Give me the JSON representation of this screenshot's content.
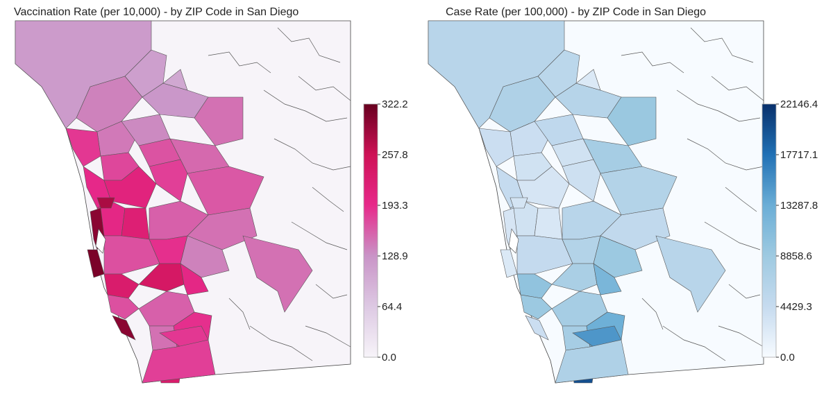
{
  "chart_data": [
    {
      "type": "choropleth",
      "title": "Vaccination Rate (per 10,000) - by ZIP Code in San Diego",
      "colorbar": {
        "min": 0.0,
        "max": 322.2,
        "ticks": [
          "0.0",
          "64.4",
          "128.9",
          "193.3",
          "257.8",
          "322.2"
        ],
        "colors": [
          "#f7f4f9",
          "#ddc9e3",
          "#c994c7",
          "#e7298a",
          "#ce1256",
          "#67001f"
        ]
      },
      "regions": [
        {
          "v": 120
        },
        {
          "v": 115
        },
        {
          "v": 140
        },
        {
          "v": 125
        },
        {
          "v": 150
        },
        {
          "v": 105
        },
        {
          "v": 145
        },
        {
          "v": 135
        },
        {
          "v": 185
        },
        {
          "v": 175
        },
        {
          "v": 168
        },
        {
          "v": 155
        },
        {
          "v": 195
        },
        {
          "v": 210
        },
        {
          "v": 180
        },
        {
          "v": 165
        },
        {
          "v": 200
        },
        {
          "v": 220
        },
        {
          "v": 300
        },
        {
          "v": 310
        },
        {
          "v": 280
        },
        {
          "v": 160
        },
        {
          "v": 150
        },
        {
          "v": 170
        },
        {
          "v": 190
        },
        {
          "v": 140
        },
        {
          "v": 150
        },
        {
          "v": 230
        },
        {
          "v": 240
        },
        {
          "v": 200
        },
        {
          "v": 170
        },
        {
          "v": 300
        },
        {
          "v": 160
        },
        {
          "v": 150
        },
        {
          "v": 190
        },
        {
          "v": 185
        },
        {
          "v": 230
        },
        {
          "v": 180
        }
      ]
    },
    {
      "type": "choropleth",
      "title": "Case Rate (per 100,000) - by ZIP Code in San Diego",
      "colorbar": {
        "min": 0.0,
        "max": 22146.4,
        "ticks": [
          "0.0",
          "4429.3",
          "8858.6",
          "13287.8",
          "17717.1",
          "22146.4"
        ],
        "colors": [
          "#f7fbff",
          "#c6dbef",
          "#9ecae1",
          "#6baed6",
          "#2171b5",
          "#08306b"
        ]
      },
      "regions": [
        {
          "v": 6000
        },
        {
          "v": 5600
        },
        {
          "v": 7000
        },
        {
          "v": 6200
        },
        {
          "v": 9200
        },
        {
          "v": 2500
        },
        {
          "v": 4000
        },
        {
          "v": 5200
        },
        {
          "v": 4000
        },
        {
          "v": 3500
        },
        {
          "v": 3500
        },
        {
          "v": 8000
        },
        {
          "v": 4500
        },
        {
          "v": 3000
        },
        {
          "v": 3800
        },
        {
          "v": 6500
        },
        {
          "v": 3500
        },
        {
          "v": 2800
        },
        {
          "v": 3000
        },
        {
          "v": 2500
        },
        {
          "v": 3200
        },
        {
          "v": 6000
        },
        {
          "v": 5000
        },
        {
          "v": 4600
        },
        {
          "v": 6500
        },
        {
          "v": 9000
        },
        {
          "v": 6000
        },
        {
          "v": 10000
        },
        {
          "v": 7500
        },
        {
          "v": 12000
        },
        {
          "v": 9000
        },
        {
          "v": 4000
        },
        {
          "v": 8000
        },
        {
          "v": 8000
        },
        {
          "v": 13000
        },
        {
          "v": 15000
        },
        {
          "v": 20000
        },
        {
          "v": 7000
        }
      ]
    }
  ]
}
